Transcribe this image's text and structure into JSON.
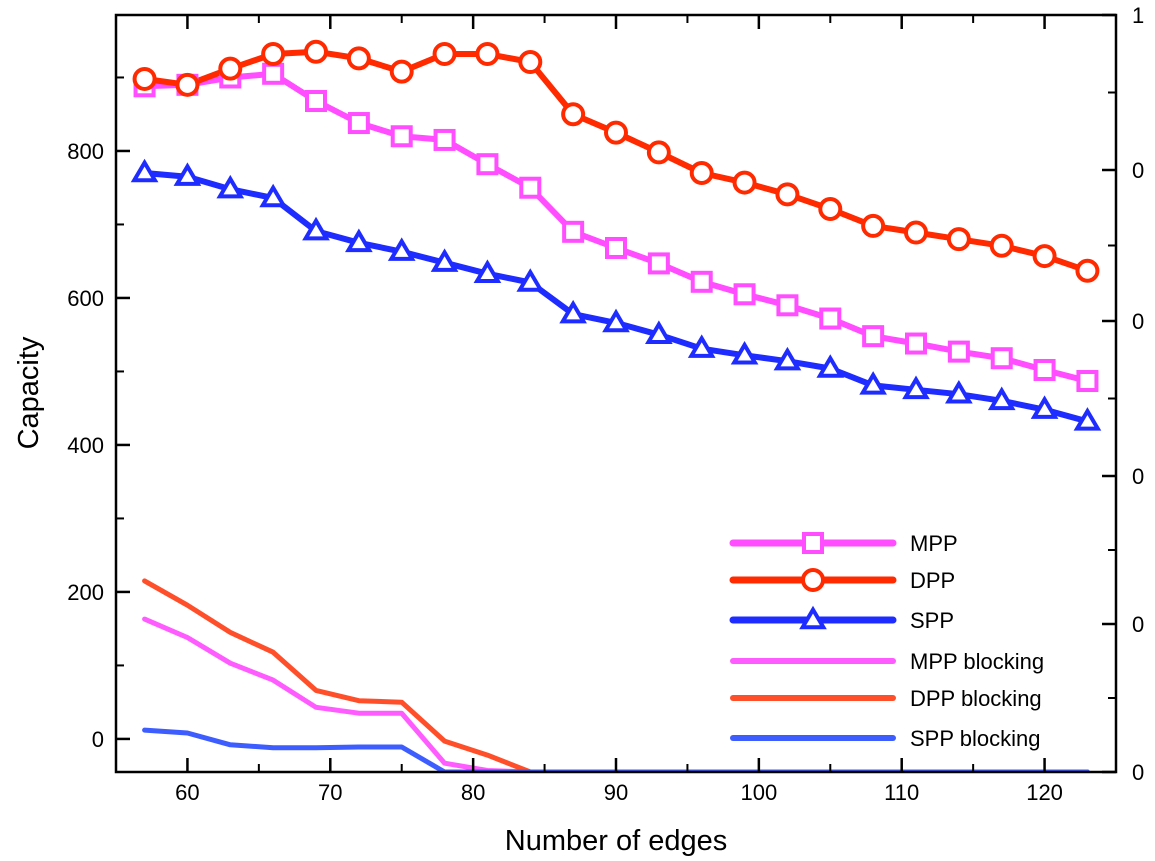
{
  "chart_data": {
    "type": "line",
    "title": "",
    "xlabel": "Number of edges",
    "ylabel": "Capacity",
    "xlim": [
      55,
      125
    ],
    "ylim": [
      -45,
      985
    ],
    "right_ylim": [
      0,
      1
    ],
    "x_ticks": [
      60,
      70,
      80,
      90,
      100,
      110,
      120
    ],
    "y_ticks": [
      0,
      200,
      400,
      600,
      800
    ],
    "right_tick_labels": [
      "1",
      "0",
      "0",
      "0",
      "0",
      "0"
    ],
    "grid": false,
    "legend_position": "bottom-right",
    "x": [
      57,
      60,
      63,
      66,
      69,
      72,
      75,
      78,
      81,
      84,
      87,
      90,
      93,
      96,
      99,
      102,
      105,
      108,
      111,
      114,
      117,
      120,
      123
    ],
    "series": [
      {
        "name": "MPP",
        "color": "#ff4dff",
        "marker": "square",
        "values": [
          888,
          890,
          900,
          905,
          868,
          838,
          820,
          815,
          782,
          750,
          690,
          668,
          647,
          622,
          605,
          590,
          572,
          548,
          538,
          527,
          518,
          502,
          487
        ]
      },
      {
        "name": "DPP",
        "color": "#ff2a00",
        "marker": "circle",
        "values": [
          898,
          890,
          912,
          932,
          935,
          926,
          908,
          932,
          932,
          921,
          850,
          825,
          798,
          770,
          757,
          741,
          721,
          698,
          689,
          680,
          671,
          657,
          637
        ]
      },
      {
        "name": "SPP",
        "color": "#1e2cff",
        "marker": "triangle",
        "values": [
          770,
          765,
          748,
          736,
          691,
          675,
          663,
          648,
          633,
          621,
          578,
          566,
          550,
          531,
          522,
          514,
          504,
          481,
          475,
          469,
          460,
          448,
          432
        ]
      },
      {
        "name": "MPP blocking",
        "color": "#ff5cff",
        "marker": "none",
        "values": [
          163,
          138,
          103,
          80,
          43,
          35,
          35,
          -33,
          -43,
          -45,
          -45,
          -45,
          -45,
          -45,
          -45,
          -45,
          -45,
          -45,
          -45,
          -45,
          -45,
          -45,
          -45
        ]
      },
      {
        "name": "DPP blocking",
        "color": "#ff4f2a",
        "marker": "none",
        "values": [
          215,
          182,
          145,
          118,
          66,
          52,
          50,
          -3,
          -22,
          -45,
          -45,
          -45,
          -45,
          -45,
          -45,
          -45,
          -45,
          -45,
          -45,
          -45,
          -45,
          -45,
          -45
        ]
      },
      {
        "name": "SPP blocking",
        "color": "#3d5dff",
        "marker": "none",
        "values": [
          12,
          8,
          -8,
          -12,
          -12,
          -11,
          -11,
          -45,
          -45,
          -45,
          -45,
          -45,
          -45,
          -45,
          -45,
          -45,
          -45,
          -45,
          -45,
          -45,
          -45,
          -45,
          -45
        ]
      }
    ]
  }
}
